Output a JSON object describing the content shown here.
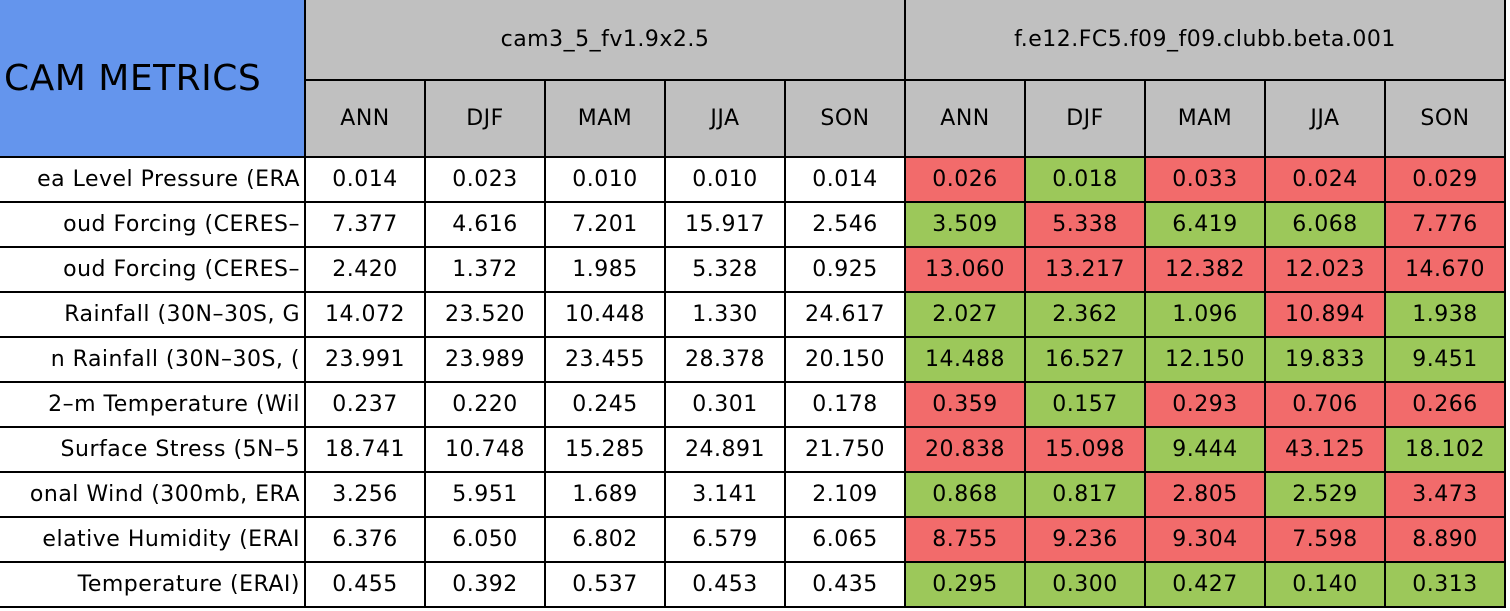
{
  "title": "CAM METRICS",
  "groups": [
    {
      "name": "cam3_5_fv1.9x2.5",
      "seasons": [
        "ANN",
        "DJF",
        "MAM",
        "JJA",
        "SON"
      ]
    },
    {
      "name": "f.e12.FC5.f09_f09.clubb.beta.001",
      "seasons": [
        "ANN",
        "DJF",
        "MAM",
        "JJA",
        "SON"
      ]
    }
  ],
  "rows": [
    {
      "label": "ea Level Pressure (ERA",
      "values": [
        "0.014",
        "0.023",
        "0.010",
        "0.010",
        "0.014",
        "0.026",
        "0.018",
        "0.033",
        "0.024",
        "0.029"
      ],
      "colors": [
        "#f26b6b",
        "#9cc85a",
        "#f26b6b",
        "#f26b6b",
        "#f26b6b"
      ]
    },
    {
      "label": "oud Forcing (CERES–",
      "values": [
        "7.377",
        "4.616",
        "7.201",
        "15.917",
        "2.546",
        "3.509",
        "5.338",
        "6.419",
        "6.068",
        "7.776"
      ],
      "colors": [
        "#9cc85a",
        "#f26b6b",
        "#9cc85a",
        "#9cc85a",
        "#f26b6b"
      ]
    },
    {
      "label": "oud Forcing (CERES–",
      "values": [
        "2.420",
        "1.372",
        "1.985",
        "5.328",
        "0.925",
        "13.060",
        "13.217",
        "12.382",
        "12.023",
        "14.670"
      ],
      "colors": [
        "#f26b6b",
        "#f26b6b",
        "#f26b6b",
        "#f26b6b",
        "#f26b6b"
      ]
    },
    {
      "label": "Rainfall (30N–30S, G",
      "values": [
        "14.072",
        "23.520",
        "10.448",
        "1.330",
        "24.617",
        "2.027",
        "2.362",
        "1.096",
        "10.894",
        "1.938"
      ],
      "colors": [
        "#9cc85a",
        "#9cc85a",
        "#9cc85a",
        "#f26b6b",
        "#9cc85a"
      ]
    },
    {
      "label": "n Rainfall (30N–30S, (",
      "values": [
        "23.991",
        "23.989",
        "23.455",
        "28.378",
        "20.150",
        "14.488",
        "16.527",
        "12.150",
        "19.833",
        "9.451"
      ],
      "colors": [
        "#9cc85a",
        "#9cc85a",
        "#9cc85a",
        "#9cc85a",
        "#9cc85a"
      ]
    },
    {
      "label": "2–m Temperature (Wil",
      "values": [
        "0.237",
        "0.220",
        "0.245",
        "0.301",
        "0.178",
        "0.359",
        "0.157",
        "0.293",
        "0.706",
        "0.266"
      ],
      "colors": [
        "#f26b6b",
        "#9cc85a",
        "#f26b6b",
        "#f26b6b",
        "#f26b6b"
      ]
    },
    {
      "label": "Surface Stress (5N–5",
      "values": [
        "18.741",
        "10.748",
        "15.285",
        "24.891",
        "21.750",
        "20.838",
        "15.098",
        "9.444",
        "43.125",
        "18.102"
      ],
      "colors": [
        "#f26b6b",
        "#f26b6b",
        "#9cc85a",
        "#f26b6b",
        "#9cc85a"
      ]
    },
    {
      "label": "onal Wind (300mb, ERA",
      "values": [
        "3.256",
        "5.951",
        "1.689",
        "3.141",
        "2.109",
        "0.868",
        "0.817",
        "2.805",
        "2.529",
        "3.473"
      ],
      "colors": [
        "#9cc85a",
        "#9cc85a",
        "#f26b6b",
        "#9cc85a",
        "#f26b6b"
      ]
    },
    {
      "label": "elative Humidity (ERAI",
      "values": [
        "6.376",
        "6.050",
        "6.802",
        "6.579",
        "6.065",
        "8.755",
        "9.236",
        "9.304",
        "7.598",
        "8.890"
      ],
      "colors": [
        "#f26b6b",
        "#f26b6b",
        "#f26b6b",
        "#f26b6b",
        "#f26b6b"
      ]
    },
    {
      "label": "Temperature (ERAI)",
      "values": [
        "0.455",
        "0.392",
        "0.537",
        "0.453",
        "0.435",
        "0.295",
        "0.300",
        "0.427",
        "0.140",
        "0.313"
      ],
      "colors": [
        "#9cc85a",
        "#9cc85a",
        "#9cc85a",
        "#9cc85a",
        "#9cc85a"
      ]
    }
  ]
}
